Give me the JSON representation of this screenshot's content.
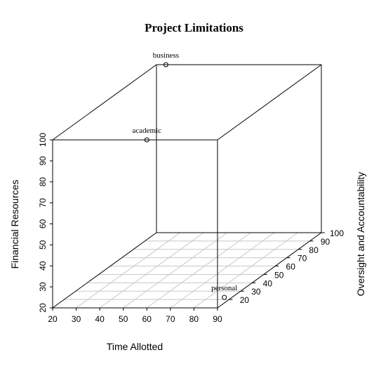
{
  "chart_data": {
    "type": "scatter",
    "title": "Project Limitations",
    "xlabel": "Time Allotted",
    "ylabel": "Oversight and Accountability",
    "zlabel": "Financial Resources",
    "xlim": [
      20,
      90
    ],
    "ylim": [
      10,
      100
    ],
    "zlim": [
      20,
      100
    ],
    "xticks": [
      20,
      30,
      40,
      50,
      60,
      70,
      80,
      90
    ],
    "yticks": [
      20,
      30,
      40,
      50,
      60,
      70,
      80,
      90,
      100
    ],
    "zticks": [
      20,
      30,
      40,
      50,
      60,
      70,
      80,
      90,
      100
    ],
    "grid": "on base plane",
    "points": [
      {
        "label": "business",
        "x": 24,
        "y": 100,
        "z": 100
      },
      {
        "label": "academic",
        "x": 60,
        "y": 10,
        "z": 100
      },
      {
        "label": "personal",
        "x": 88,
        "y": 20,
        "z": 21
      }
    ]
  }
}
